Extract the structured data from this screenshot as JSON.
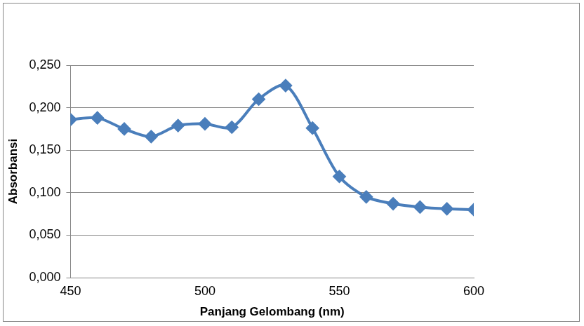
{
  "chart_data": {
    "type": "line",
    "x_label": "Panjang Gelombang (nm)",
    "y_label": "Absorbansi",
    "series": [
      {
        "name": "Absorbansi",
        "color": "#4a7ebb",
        "marker": "diamond",
        "line_style": "solid",
        "x": [
          450,
          460,
          470,
          480,
          490,
          500,
          510,
          520,
          530,
          540,
          550,
          560,
          570,
          580,
          590,
          600
        ],
        "values": [
          0.186,
          0.188,
          0.175,
          0.166,
          0.179,
          0.181,
          0.177,
          0.21,
          0.226,
          0.176,
          0.119,
          0.095,
          0.087,
          0.083,
          0.081,
          0.08
        ]
      }
    ],
    "xlim": [
      450,
      600
    ],
    "xticks": [
      450,
      500,
      550,
      600
    ],
    "ylim": [
      0,
      0.25
    ],
    "yticks": [
      {
        "value": 0,
        "label": "0,000"
      },
      {
        "value": 0.05,
        "label": "0,050"
      },
      {
        "value": 0.1,
        "label": "0,100"
      },
      {
        "value": 0.15,
        "label": "0,150"
      },
      {
        "value": 0.2,
        "label": "0,200"
      },
      {
        "value": 0.25,
        "label": "0,250"
      }
    ],
    "grid": true
  }
}
